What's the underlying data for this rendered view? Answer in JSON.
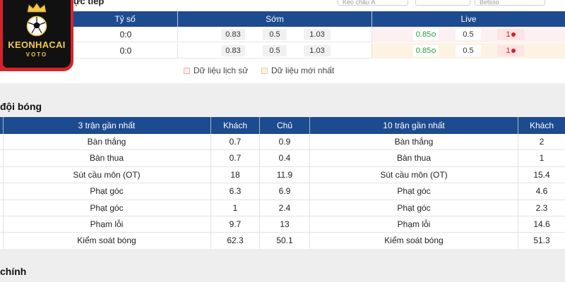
{
  "logo": {
    "brand": "KEONHACAI",
    "sub": "VOTO"
  },
  "top": {
    "partial_title": "ực tiếp",
    "selects": [
      "Kèo châu Á",
      "",
      "Betsso"
    ]
  },
  "odds": {
    "headers": {
      "score": "Tỷ số",
      "early": "Sớm",
      "live": "Live"
    },
    "rows": [
      {
        "score": "0:0",
        "early": [
          "0.83",
          "0.5",
          "1.03"
        ],
        "live": [
          "0.85",
          "0.5",
          "1"
        ]
      },
      {
        "score": "0:0",
        "early": [
          "0.83",
          "0.5",
          "1.03"
        ],
        "live": [
          "0.85",
          "0.5",
          "1"
        ]
      }
    ],
    "legend": {
      "history": "Dữ liệu lịch sử",
      "newest": "Dữ liệu mới nhất"
    },
    "colors": {
      "live_row_1": "#fdf0f0",
      "live_row_2": "#fdf3e3",
      "header": "#1d4b8f"
    }
  },
  "stats": {
    "section_title": "đội bóng",
    "headers": {
      "last3": "3 trận gần nhất",
      "away": "Khách",
      "home": "Chủ",
      "last10": "10 trận gần nhất",
      "away10": "Khách"
    },
    "rows": [
      {
        "label": "Bàn thắng",
        "away": "0.7",
        "home": "0.9",
        "label10": "Bàn thắng",
        "away10": "2"
      },
      {
        "label": "Bàn thua",
        "away": "0.7",
        "home": "0.4",
        "label10": "Bàn thua",
        "away10": "1"
      },
      {
        "label": "Sút cầu môn (OT)",
        "away": "18",
        "home": "11.9",
        "label10": "Sút cầu môn (OT)",
        "away10": "15.4"
      },
      {
        "label": "Phạt góc",
        "away": "6.3",
        "home": "6.9",
        "label10": "Phạt góc",
        "away10": "4.6"
      },
      {
        "label": "Phạt góc",
        "away": "1",
        "home": "2.4",
        "label10": "Phạt góc",
        "away10": "2.3"
      },
      {
        "label": "Phạm lỗi",
        "away": "9.7",
        "home": "13",
        "label10": "Phạm lỗi",
        "away10": "14.6"
      },
      {
        "label": "Kiểm soát bóng",
        "away": "62.3",
        "home": "50.1",
        "label10": "Kiểm soát bóng",
        "away10": "51.3"
      }
    ]
  },
  "bottom": {
    "section_title": "chính"
  }
}
